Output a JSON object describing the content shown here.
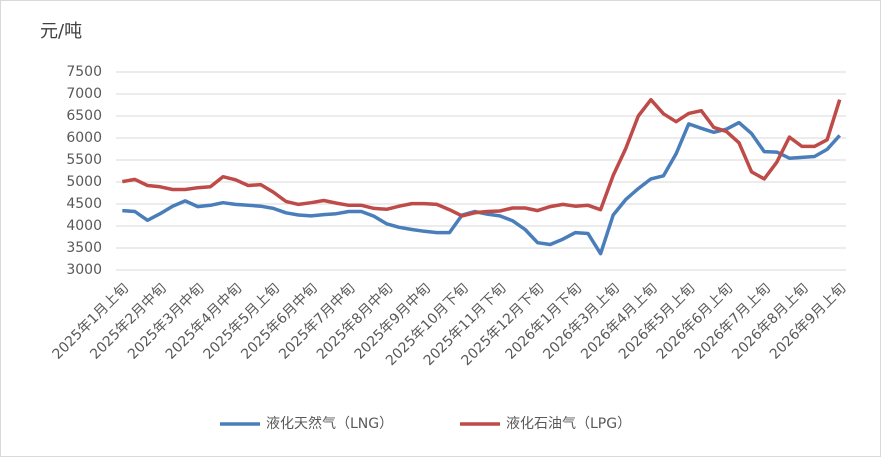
{
  "chart_data": {
    "type": "line",
    "y_label": "元/吨",
    "categories": [
      "2025年1月上旬",
      null,
      null,
      "2025年2月中旬",
      null,
      null,
      "2025年3月中旬",
      null,
      null,
      "2025年4月中旬",
      null,
      null,
      "2025年5月上旬",
      null,
      null,
      "2025年6月中旬",
      null,
      null,
      "2025年7月中旬",
      null,
      null,
      "2025年8月中旬",
      null,
      null,
      "2025年9月中旬",
      null,
      null,
      "2025年10月下旬",
      null,
      null,
      "2025年11月下旬",
      null,
      null,
      "2025年12月下旬",
      null,
      null,
      "2026年1月下旬",
      null,
      null,
      "2026年3月上旬",
      null,
      null,
      "2026年4月上旬",
      null,
      null,
      "2026年5月上旬",
      null,
      null,
      "2026年6月上旬",
      null,
      null,
      "2026年7月上旬",
      null,
      null,
      "2026年8月上旬",
      null,
      null,
      "2026年9月上旬"
    ],
    "series": [
      {
        "name": "液化天然气（LNG）",
        "color": "#4a7ebb",
        "values": [
          4350,
          4330,
          4130,
          4280,
          4450,
          4570,
          4440,
          4470,
          4530,
          4490,
          4470,
          4450,
          4400,
          4300,
          4250,
          4230,
          4260,
          4280,
          4330,
          4330,
          4220,
          4050,
          3970,
          3920,
          3880,
          3850,
          3850,
          4250,
          4330,
          4270,
          4230,
          4120,
          3920,
          3620,
          3580,
          3700,
          3850,
          3830,
          3370,
          4250,
          4600,
          4850,
          5070,
          5140,
          5640,
          6320,
          6220,
          6130,
          6200,
          6350,
          6100,
          5690,
          5680,
          5540,
          5560,
          5580,
          5740,
          6060
        ]
      },
      {
        "name": "液化石油气（LPG）",
        "color": "#be4b48",
        "values": [
          5010,
          5060,
          4920,
          4890,
          4830,
          4830,
          4870,
          4890,
          5120,
          5050,
          4920,
          4940,
          4770,
          4560,
          4490,
          4530,
          4580,
          4520,
          4470,
          4470,
          4400,
          4380,
          4450,
          4510,
          4510,
          4490,
          4370,
          4230,
          4300,
          4330,
          4340,
          4410,
          4410,
          4350,
          4440,
          4490,
          4450,
          4470,
          4370,
          5150,
          5760,
          6500,
          6870,
          6550,
          6370,
          6560,
          6620,
          6240,
          6150,
          5890,
          5230,
          5070,
          5450,
          6020,
          5810,
          5810,
          5960,
          6870
        ]
      }
    ],
    "ylim": [
      3000,
      7500
    ],
    "yticks": [
      3000,
      3500,
      4000,
      4500,
      5000,
      5500,
      6000,
      6500,
      7000,
      7500
    ],
    "grid": true,
    "legend": "bottom"
  }
}
